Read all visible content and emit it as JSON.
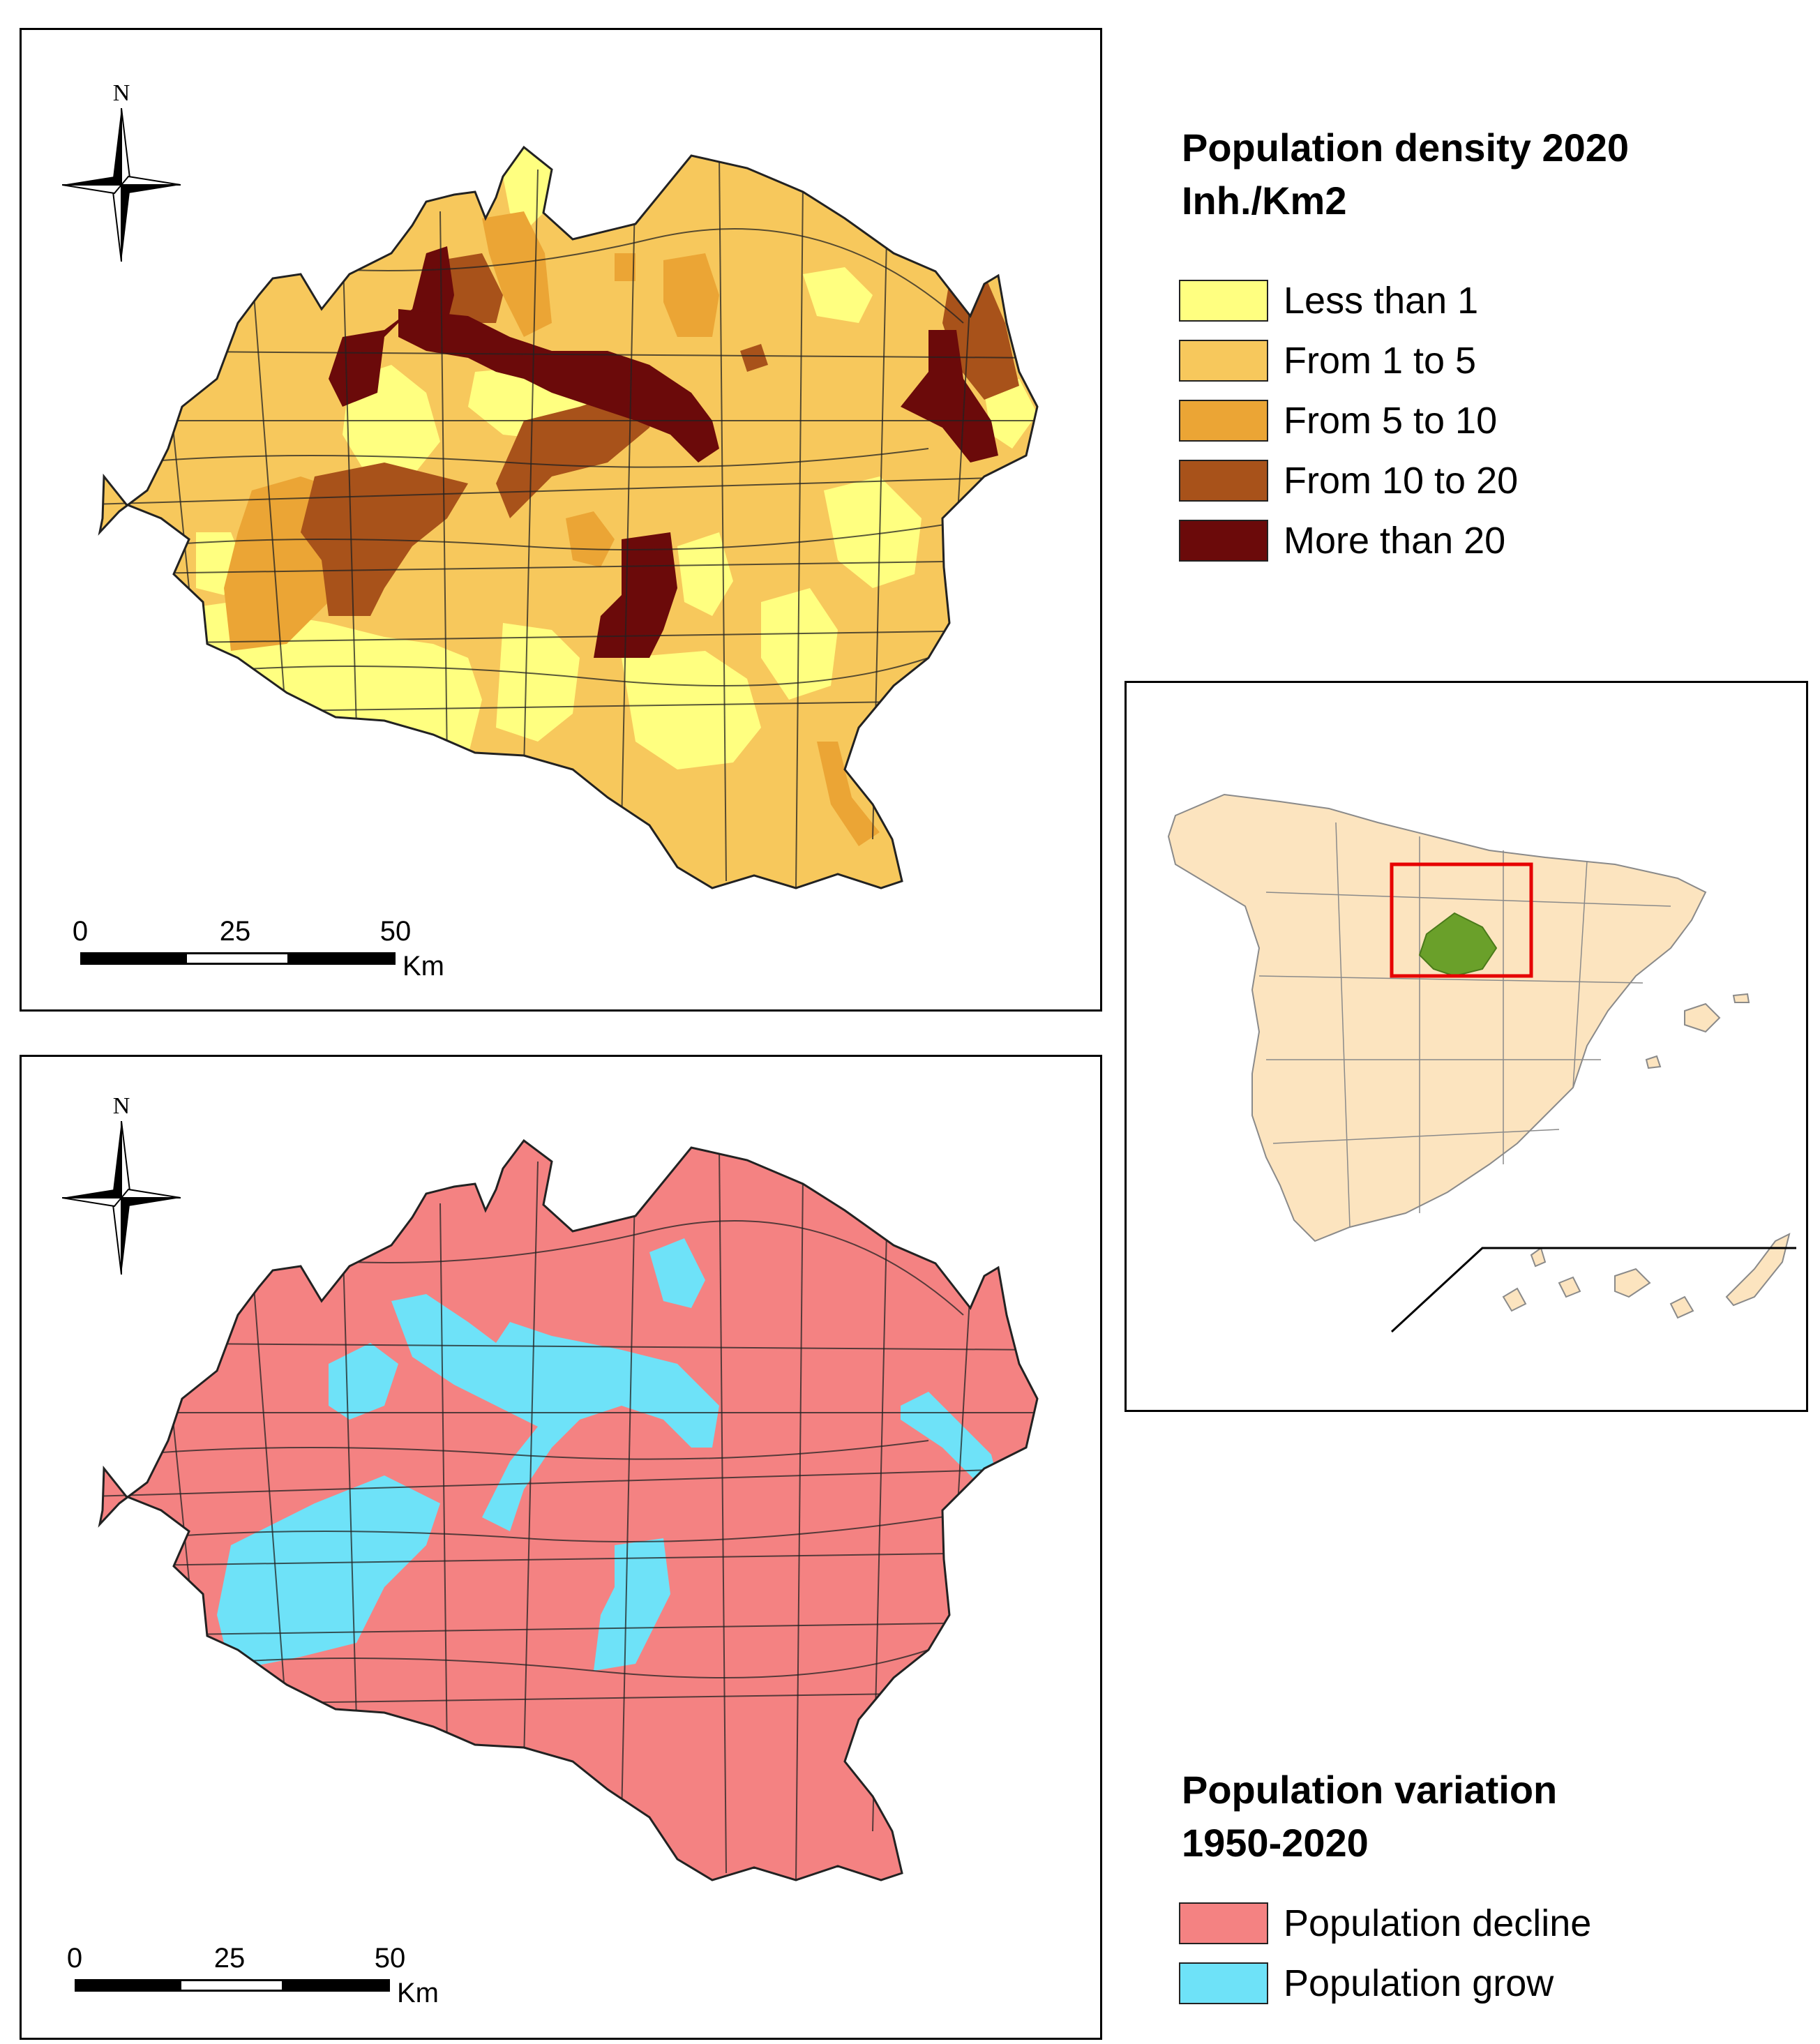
{
  "top_map": {
    "north_label": "N",
    "scale": {
      "ticks": [
        "0",
        "25",
        "50"
      ],
      "unit": "Km"
    },
    "colors": {
      "less_than_1": "#ffff80",
      "from_1_to_5": "#f7c85c",
      "from_5_to_10": "#eba535",
      "from_10_to_20": "#a8521a",
      "more_than_20": "#6b0a0a"
    }
  },
  "density_legend": {
    "title_line1": "Population density 2020",
    "title_line2": "Inh./Km2",
    "items": [
      {
        "label": "Less than 1",
        "color": "#ffff80"
      },
      {
        "label": "From 1 to 5",
        "color": "#f7c85c"
      },
      {
        "label": "From 5 to 10",
        "color": "#eba535"
      },
      {
        "label": "From 10 to 20",
        "color": "#a8521a"
      },
      {
        "label": "More than 20",
        "color": "#6b0a0a"
      }
    ]
  },
  "bottom_map": {
    "north_label": "N",
    "scale": {
      "ticks": [
        "0",
        "25",
        "50"
      ],
      "unit": "Km"
    },
    "colors": {
      "decline": "#f48282",
      "grow": "#6ee2f8"
    }
  },
  "variation_legend": {
    "title_line1": "Population variation",
    "title_line2": "1950-2020",
    "items": [
      {
        "label": "Population decline",
        "color": "#f48282"
      },
      {
        "label": "Population grow",
        "color": "#6ee2f8"
      }
    ]
  },
  "inset_map": {
    "land_color": "#fce4bf",
    "highlight_color": "#6aa02a",
    "box_color": "#e60000"
  }
}
